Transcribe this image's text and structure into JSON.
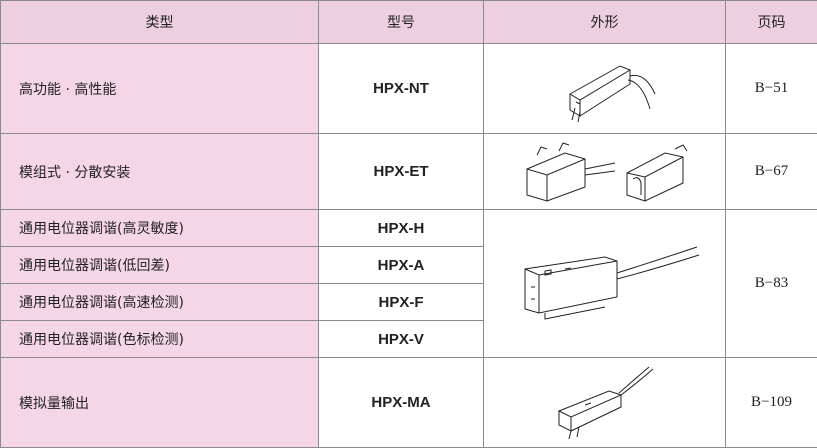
{
  "table": {
    "header": [
      "类型",
      "型号",
      "外形",
      "页码"
    ],
    "rows": [
      {
        "type": "高功能 · 高性能",
        "model": "HPX-NT",
        "page": "B−51"
      },
      {
        "type": "模组式 · 分散安装",
        "model": "HPX-ET",
        "page": "B−67"
      },
      {
        "type": "通用电位器调谐(高灵敏度)",
        "model": "HPX-H",
        "page": "B−83"
      },
      {
        "type": "通用电位器调谐(低回差)",
        "model": "HPX-A"
      },
      {
        "type": "通用电位器调谐(高速检测)",
        "model": "HPX-F"
      },
      {
        "type": "通用电位器调谐(色标检测)",
        "model": "HPX-V"
      },
      {
        "type": "模拟量输出",
        "model": "HPX-MA",
        "page": "B−109"
      }
    ]
  }
}
